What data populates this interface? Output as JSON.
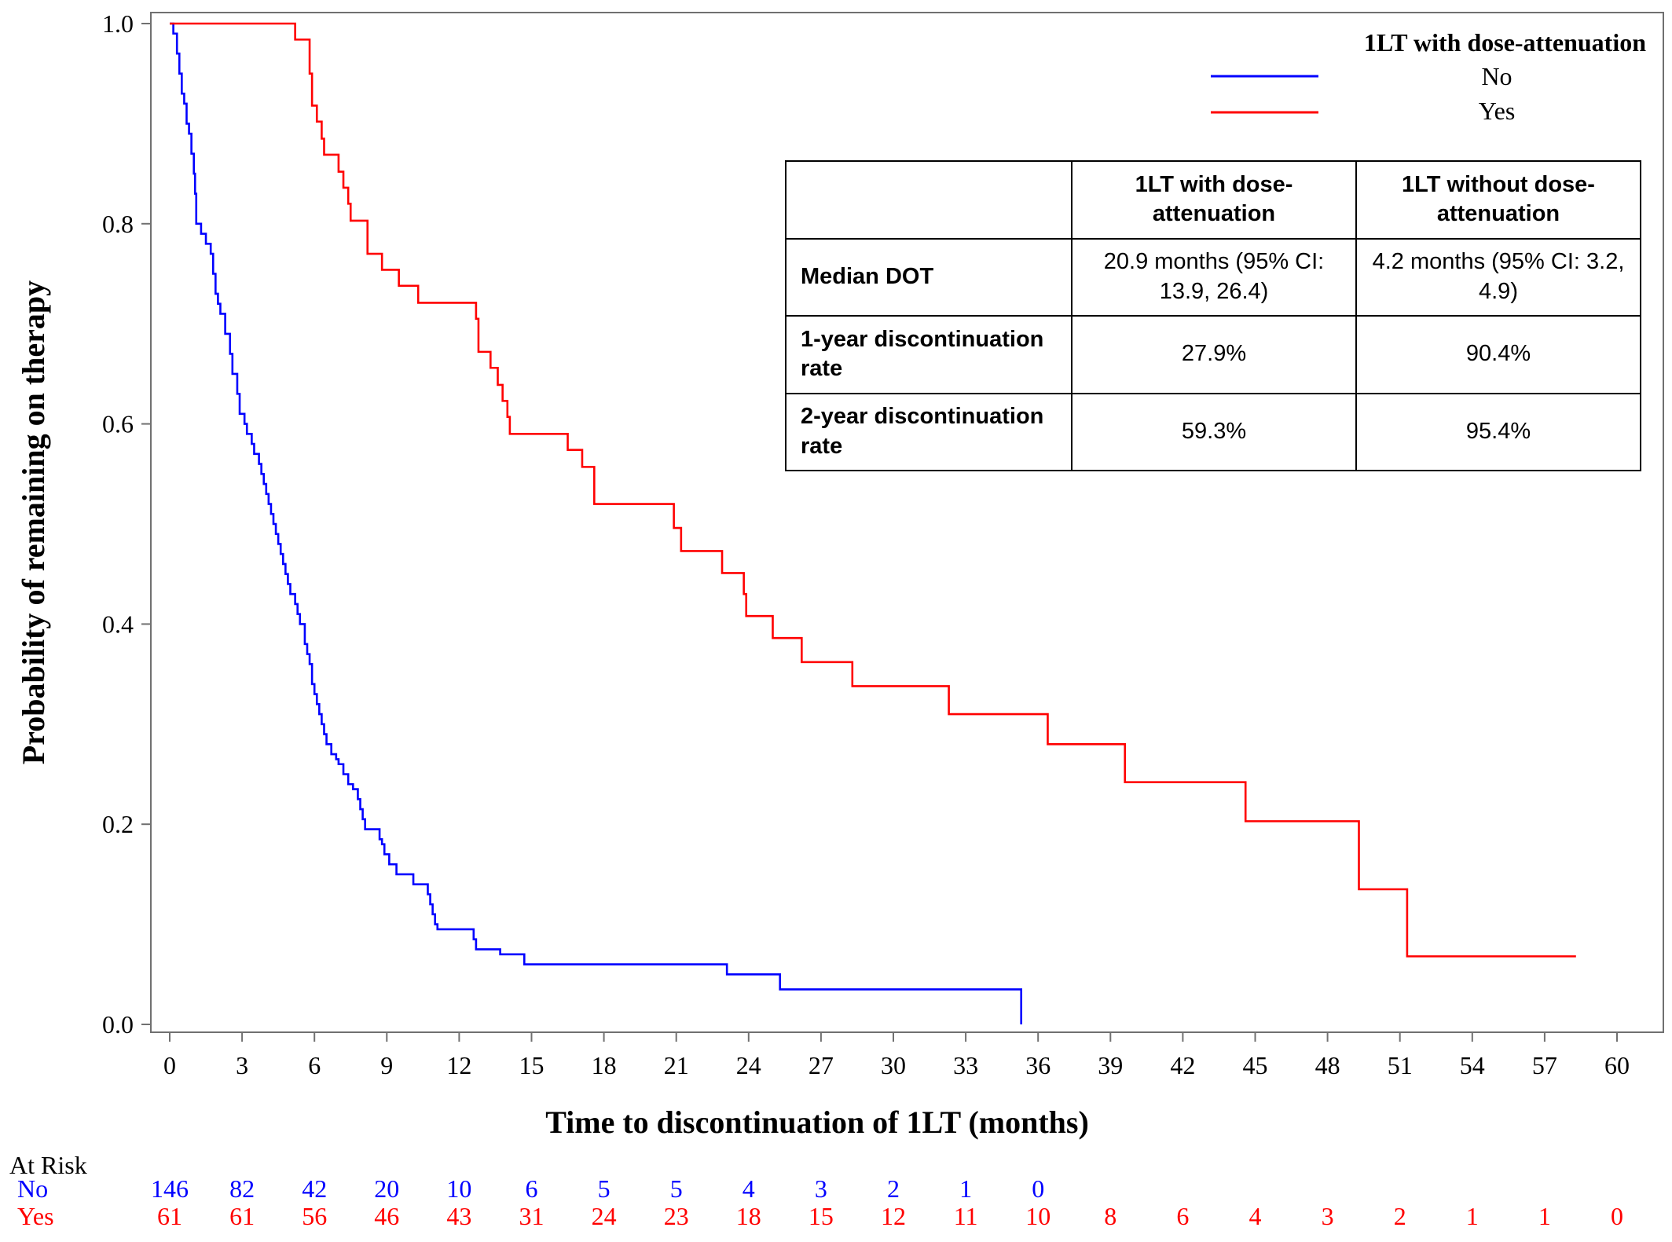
{
  "chart_data": {
    "type": "line",
    "subtype": "kaplan-meier step",
    "xlabel": "Time to discontinuation of 1LT (months)",
    "ylabel": "Probability of remaining on therapy",
    "xlim": [
      0,
      60
    ],
    "ylim": [
      0.0,
      1.0
    ],
    "x_ticks": [
      0,
      3,
      6,
      9,
      12,
      15,
      18,
      21,
      24,
      27,
      30,
      33,
      36,
      39,
      42,
      45,
      48,
      51,
      54,
      57,
      60
    ],
    "y_ticks": [
      0.0,
      0.2,
      0.4,
      0.6,
      0.8,
      1.0
    ],
    "y_tick_labels": [
      "0.0",
      "0.2",
      "0.4",
      "0.6",
      "0.8",
      "1.0"
    ],
    "grid": false,
    "legend": {
      "title": "1LT with dose-attenuation",
      "position": "top-right"
    },
    "series": [
      {
        "name": "No",
        "color": "#0000ff",
        "points": [
          [
            0,
            1.0
          ],
          [
            0.15,
            0.99
          ],
          [
            0.3,
            0.97
          ],
          [
            0.4,
            0.95
          ],
          [
            0.5,
            0.93
          ],
          [
            0.6,
            0.92
          ],
          [
            0.7,
            0.9
          ],
          [
            0.8,
            0.89
          ],
          [
            0.9,
            0.87
          ],
          [
            1.0,
            0.85
          ],
          [
            1.05,
            0.83
          ],
          [
            1.1,
            0.8
          ],
          [
            1.3,
            0.79
          ],
          [
            1.5,
            0.78
          ],
          [
            1.7,
            0.77
          ],
          [
            1.8,
            0.75
          ],
          [
            1.9,
            0.73
          ],
          [
            2.0,
            0.72
          ],
          [
            2.1,
            0.71
          ],
          [
            2.3,
            0.69
          ],
          [
            2.5,
            0.67
          ],
          [
            2.6,
            0.65
          ],
          [
            2.8,
            0.63
          ],
          [
            2.9,
            0.61
          ],
          [
            3.1,
            0.6
          ],
          [
            3.2,
            0.59
          ],
          [
            3.4,
            0.58
          ],
          [
            3.5,
            0.57
          ],
          [
            3.7,
            0.56
          ],
          [
            3.8,
            0.55
          ],
          [
            3.9,
            0.54
          ],
          [
            4.0,
            0.53
          ],
          [
            4.1,
            0.52
          ],
          [
            4.2,
            0.51
          ],
          [
            4.3,
            0.5
          ],
          [
            4.4,
            0.49
          ],
          [
            4.5,
            0.48
          ],
          [
            4.6,
            0.47
          ],
          [
            4.7,
            0.46
          ],
          [
            4.8,
            0.45
          ],
          [
            4.9,
            0.44
          ],
          [
            5.0,
            0.43
          ],
          [
            5.2,
            0.42
          ],
          [
            5.3,
            0.41
          ],
          [
            5.4,
            0.4
          ],
          [
            5.6,
            0.38
          ],
          [
            5.7,
            0.37
          ],
          [
            5.8,
            0.36
          ],
          [
            5.9,
            0.34
          ],
          [
            6.0,
            0.33
          ],
          [
            6.1,
            0.32
          ],
          [
            6.2,
            0.31
          ],
          [
            6.3,
            0.3
          ],
          [
            6.4,
            0.29
          ],
          [
            6.5,
            0.28
          ],
          [
            6.7,
            0.27
          ],
          [
            6.9,
            0.265
          ],
          [
            7.0,
            0.26
          ],
          [
            7.2,
            0.25
          ],
          [
            7.4,
            0.24
          ],
          [
            7.6,
            0.235
          ],
          [
            7.8,
            0.225
          ],
          [
            7.9,
            0.215
          ],
          [
            8.0,
            0.205
          ],
          [
            8.1,
            0.195
          ],
          [
            8.7,
            0.185
          ],
          [
            8.8,
            0.18
          ],
          [
            8.9,
            0.17
          ],
          [
            9.1,
            0.16
          ],
          [
            9.4,
            0.15
          ],
          [
            10.1,
            0.14
          ],
          [
            10.7,
            0.13
          ],
          [
            10.8,
            0.12
          ],
          [
            10.9,
            0.11
          ],
          [
            11.0,
            0.1
          ],
          [
            11.1,
            0.095
          ],
          [
            12.6,
            0.085
          ],
          [
            12.7,
            0.075
          ],
          [
            13.7,
            0.07
          ],
          [
            14.7,
            0.06
          ],
          [
            23.1,
            0.05
          ],
          [
            25.3,
            0.035
          ],
          [
            35.3,
            0.0
          ]
        ]
      },
      {
        "name": "Yes",
        "color": "#ff0000",
        "points": [
          [
            0,
            1.0
          ],
          [
            5.2,
            0.984
          ],
          [
            5.8,
            0.95
          ],
          [
            5.9,
            0.918
          ],
          [
            6.1,
            0.902
          ],
          [
            6.3,
            0.885
          ],
          [
            6.4,
            0.869
          ],
          [
            7.0,
            0.852
          ],
          [
            7.2,
            0.836
          ],
          [
            7.4,
            0.82
          ],
          [
            7.5,
            0.803
          ],
          [
            8.2,
            0.77
          ],
          [
            8.8,
            0.754
          ],
          [
            9.5,
            0.738
          ],
          [
            10.3,
            0.721
          ],
          [
            12.7,
            0.705
          ],
          [
            12.8,
            0.672
          ],
          [
            13.3,
            0.656
          ],
          [
            13.6,
            0.639
          ],
          [
            13.8,
            0.623
          ],
          [
            14.0,
            0.607
          ],
          [
            14.1,
            0.59
          ],
          [
            16.5,
            0.574
          ],
          [
            17.1,
            0.557
          ],
          [
            17.6,
            0.52
          ],
          [
            20.9,
            0.496
          ],
          [
            21.2,
            0.473
          ],
          [
            22.9,
            0.451
          ],
          [
            23.8,
            0.43
          ],
          [
            23.9,
            0.408
          ],
          [
            25.0,
            0.386
          ],
          [
            26.2,
            0.362
          ],
          [
            28.3,
            0.338
          ],
          [
            32.3,
            0.31
          ],
          [
            36.4,
            0.28
          ],
          [
            39.6,
            0.242
          ],
          [
            44.6,
            0.203
          ],
          [
            49.3,
            0.135
          ],
          [
            51.3,
            0.068
          ],
          [
            58.3,
            0.068
          ]
        ]
      }
    ]
  },
  "summary_table": {
    "headers": [
      "",
      "1LT with dose-attenuation",
      "1LT without dose-attenuation"
    ],
    "rows": [
      {
        "label": "Median DOT",
        "with": "20.9 months (95% CI: 13.9, 26.4)",
        "without": "4.2 months (95% CI: 3.2, 4.9)"
      },
      {
        "label": "1-year discontinuation rate",
        "with": "27.9%",
        "without": "90.4%"
      },
      {
        "label": "2-year discontinuation rate",
        "with": "59.3%",
        "without": "95.4%"
      }
    ]
  },
  "at_risk": {
    "title": "At Risk",
    "rows": [
      {
        "label": "No",
        "color": "#0000ff",
        "counts": [
          "146",
          "82",
          "42",
          "20",
          "10",
          "6",
          "5",
          "5",
          "4",
          "3",
          "2",
          "1",
          "0"
        ]
      },
      {
        "label": "Yes",
        "color": "#ff0000",
        "counts": [
          "61",
          "61",
          "56",
          "46",
          "43",
          "31",
          "24",
          "23",
          "18",
          "15",
          "12",
          "11",
          "10",
          "8",
          "6",
          "4",
          "3",
          "2",
          "1",
          "1",
          "0"
        ]
      }
    ]
  }
}
